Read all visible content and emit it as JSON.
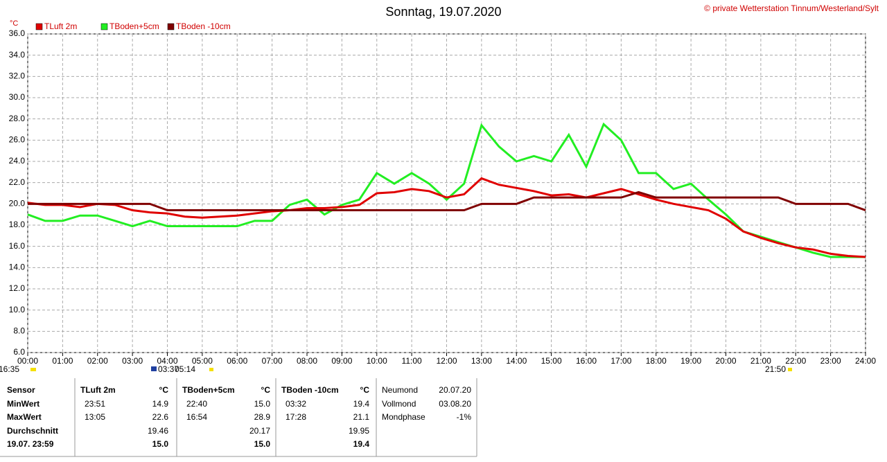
{
  "chart_data": {
    "type": "line",
    "title": "Sonntag, 19.07.2020",
    "copyright": "© private Wetterstation Tinnum/Westerland/Sylt",
    "y_label": "°C",
    "annotations": [
      "16:35",
      "03:37",
      "05:14",
      "21:50"
    ],
    "x": [
      0,
      0.5,
      1,
      1.5,
      2,
      2.5,
      3,
      3.5,
      4,
      4.5,
      5,
      5.5,
      6,
      6.5,
      7,
      7.5,
      8,
      8.5,
      9,
      9.5,
      10,
      10.5,
      11,
      11.5,
      12,
      12.5,
      13,
      13.5,
      14,
      14.5,
      15,
      15.5,
      16,
      16.5,
      17,
      17.5,
      18,
      18.5,
      19,
      19.5,
      20,
      20.5,
      21,
      21.5,
      22,
      22.5,
      23,
      23.5,
      24
    ],
    "series": [
      {
        "name": "TLuft 2m",
        "color": "#e00000",
        "values": [
          20.1,
          19.9,
          19.9,
          19.7,
          20.0,
          19.9,
          19.4,
          19.2,
          19.1,
          18.8,
          18.7,
          18.8,
          18.9,
          19.1,
          19.3,
          19.4,
          19.6,
          19.6,
          19.7,
          19.9,
          21.0,
          21.1,
          21.4,
          21.2,
          20.6,
          20.9,
          22.4,
          21.8,
          21.5,
          21.2,
          20.8,
          20.9,
          20.6,
          21.0,
          21.4,
          20.9,
          20.4,
          20.0,
          19.7,
          19.4,
          18.6,
          17.4,
          16.8,
          16.3,
          15.9,
          15.7,
          15.3,
          15.1,
          15.0
        ]
      },
      {
        "name": "TBoden+5cm",
        "color": "#22ee22",
        "values": [
          19.0,
          18.4,
          18.4,
          18.9,
          18.9,
          18.4,
          17.9,
          18.4,
          17.9,
          17.9,
          17.9,
          17.9,
          17.9,
          18.4,
          18.4,
          19.9,
          20.4,
          19.0,
          19.9,
          20.4,
          22.9,
          21.9,
          22.9,
          21.9,
          20.4,
          21.9,
          27.4,
          25.4,
          24.0,
          24.5,
          24.0,
          26.5,
          23.5,
          27.5,
          26.0,
          22.9,
          22.9,
          21.4,
          21.9,
          20.4,
          19.0,
          17.4,
          16.9,
          16.4,
          15.9,
          15.4,
          15.0,
          15.0,
          15.0
        ]
      },
      {
        "name": "TBoden -10cm",
        "color": "#800000",
        "values": [
          20.0,
          20.0,
          20.0,
          20.0,
          20.0,
          20.0,
          20.0,
          20.0,
          19.4,
          19.4,
          19.4,
          19.4,
          19.4,
          19.4,
          19.4,
          19.4,
          19.4,
          19.4,
          19.4,
          19.4,
          19.4,
          19.4,
          19.4,
          19.4,
          19.4,
          19.4,
          20.0,
          20.0,
          20.0,
          20.6,
          20.6,
          20.6,
          20.6,
          20.6,
          20.6,
          21.1,
          20.6,
          20.6,
          20.6,
          20.6,
          20.6,
          20.6,
          20.6,
          20.6,
          20.0,
          20.0,
          20.0,
          20.0,
          19.4
        ]
      }
    ],
    "xlim": [
      0,
      24
    ],
    "xticks": [
      {
        "value": 0,
        "label": "00:00"
      },
      {
        "value": 1,
        "label": "01:00"
      },
      {
        "value": 2,
        "label": "02:00"
      },
      {
        "value": 3,
        "label": "03:00"
      },
      {
        "value": 4,
        "label": "04:00"
      },
      {
        "value": 5,
        "label": "05:00"
      },
      {
        "value": 6,
        "label": "06:00"
      },
      {
        "value": 7,
        "label": "07:00"
      },
      {
        "value": 8,
        "label": "08:00"
      },
      {
        "value": 9,
        "label": "09:00"
      },
      {
        "value": 10,
        "label": "10:00"
      },
      {
        "value": 11,
        "label": "11:00"
      },
      {
        "value": 12,
        "label": "12:00"
      },
      {
        "value": 13,
        "label": "13:00"
      },
      {
        "value": 14,
        "label": "14:00"
      },
      {
        "value": 15,
        "label": "15:00"
      },
      {
        "value": 16,
        "label": "16:00"
      },
      {
        "value": 17,
        "label": "17:00"
      },
      {
        "value": 18,
        "label": "18:00"
      },
      {
        "value": 19,
        "label": "19:00"
      },
      {
        "value": 20,
        "label": "20:00"
      },
      {
        "value": 21,
        "label": "21:00"
      },
      {
        "value": 22,
        "label": "22:00"
      },
      {
        "value": 23,
        "label": "23:00"
      },
      {
        "value": 24,
        "label": "24:00"
      }
    ],
    "ylim": [
      6,
      36
    ],
    "yticks": [
      {
        "value": 6,
        "label": "6.0"
      },
      {
        "value": 8,
        "label": "8.0"
      },
      {
        "value": 10,
        "label": "10.0"
      },
      {
        "value": 12,
        "label": "12.0"
      },
      {
        "value": 14,
        "label": "14.0"
      },
      {
        "value": 16,
        "label": "16.0"
      },
      {
        "value": 18,
        "label": "18.0"
      },
      {
        "value": 20,
        "label": "20.0"
      },
      {
        "value": 22,
        "label": "22.0"
      },
      {
        "value": 24,
        "label": "24.0"
      },
      {
        "value": 26,
        "label": "26.0"
      },
      {
        "value": 28,
        "label": "28.0"
      },
      {
        "value": 30,
        "label": "30.0"
      },
      {
        "value": 32,
        "label": "32.0"
      },
      {
        "value": 34,
        "label": "34.0"
      },
      {
        "value": 36,
        "label": "36.0"
      }
    ],
    "grid": true
  },
  "stats": {
    "row_labels": [
      "Sensor",
      "MinWert",
      "MaxWert",
      "Durchschnitt",
      "19.07. 23:59"
    ],
    "sensors": [
      {
        "name": "TLuft 2m",
        "unit": "°C",
        "min_time": "23:51",
        "min": "14.9",
        "max_time": "13:05",
        "max": "22.6",
        "avg": "19.46",
        "current": "15.0"
      },
      {
        "name": "TBoden+5cm",
        "unit": "°C",
        "min_time": "22:40",
        "min": "15.0",
        "max_time": "16:54",
        "max": "28.9",
        "avg": "20.17",
        "current": "15.0"
      },
      {
        "name": "TBoden -10cm",
        "unit": "°C",
        "min_time": "03:32",
        "min": "19.4",
        "max_time": "17:28",
        "max": "21.1",
        "avg": "19.95",
        "current": "19.4"
      }
    ],
    "moon": [
      {
        "label": "Neumond",
        "value": "20.07.20"
      },
      {
        "label": "Vollmond",
        "value": "03.08.20"
      },
      {
        "label": "Mondphase",
        "value": "-1%"
      }
    ]
  }
}
